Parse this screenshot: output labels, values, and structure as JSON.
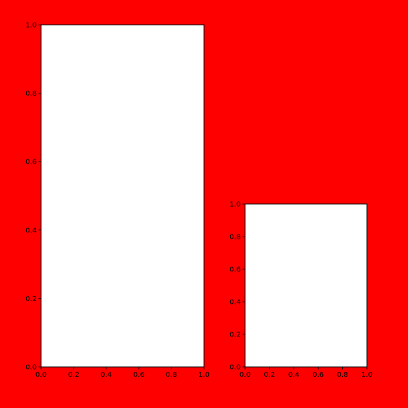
{
  "figure": {
    "background_color": "#ff0000"
  },
  "chart_data": [
    {
      "type": "scatter",
      "title": "",
      "xlabel": "",
      "ylabel": "",
      "xlim": [
        0.0,
        1.0
      ],
      "ylim": [
        0.0,
        1.0
      ],
      "xticks": [
        "0.0",
        "0.2",
        "0.4",
        "0.6",
        "0.8",
        "1.0"
      ],
      "yticks": [
        "0.0",
        "0.2",
        "0.4",
        "0.6",
        "0.8",
        "1.0"
      ],
      "series": [],
      "grid": false,
      "legend": "none",
      "axes_facecolor": "#ffffff"
    },
    {
      "type": "scatter",
      "title": "",
      "xlabel": "",
      "ylabel": "",
      "xlim": [
        0.0,
        1.0
      ],
      "ylim": [
        0.0,
        1.0
      ],
      "xticks": [
        "0.0",
        "0.2",
        "0.4",
        "0.6",
        "0.8",
        "1.0"
      ],
      "yticks": [
        "0.0",
        "0.2",
        "0.4",
        "0.6",
        "0.8",
        "1.0"
      ],
      "series": [],
      "grid": false,
      "legend": "none",
      "axes_facecolor": "#ffffff"
    }
  ]
}
